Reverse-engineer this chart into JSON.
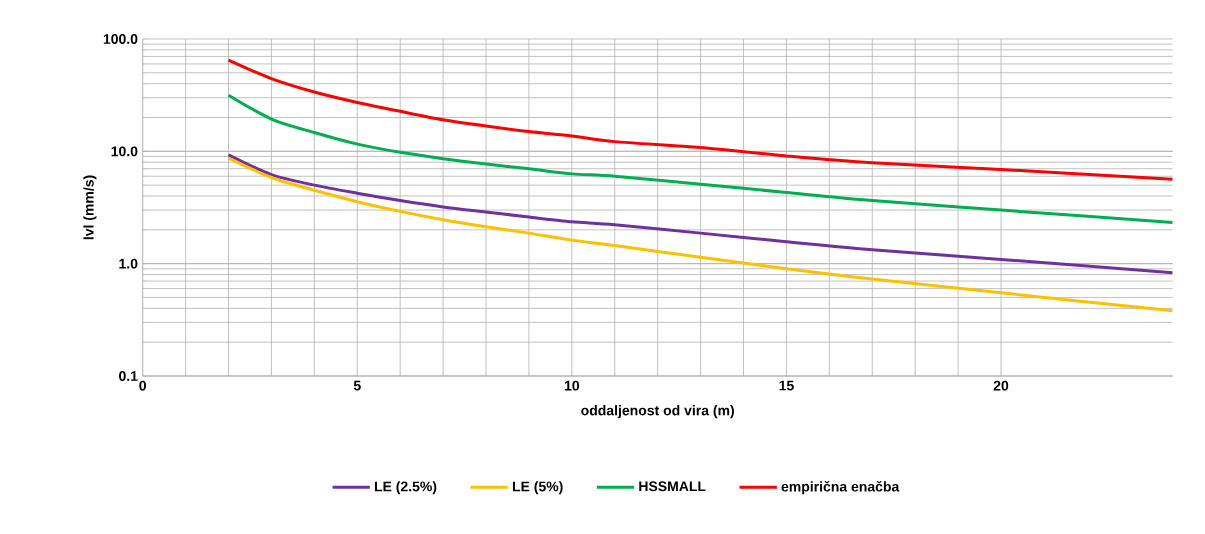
{
  "chart_data": {
    "type": "line",
    "xlabel": "oddaljenost od vira (m)",
    "ylabel": "lvl (mm/s)",
    "x": [
      2,
      3,
      4,
      5,
      6,
      7,
      8,
      9,
      10,
      11,
      13,
      15,
      17,
      20,
      24
    ],
    "series": [
      {
        "name": "LE (2.5%)",
        "color": "#7030a0",
        "values": [
          9.3,
          6.2,
          5.0,
          4.24,
          3.65,
          3.2,
          2.88,
          2.6,
          2.36,
          2.22,
          1.87,
          1.57,
          1.33,
          1.09,
          0.83
        ]
      },
      {
        "name": "LE (5%)",
        "color": "#ffc000",
        "values": [
          8.7,
          5.85,
          4.5,
          3.56,
          2.92,
          2.46,
          2.13,
          1.87,
          1.62,
          1.45,
          1.14,
          0.9,
          0.73,
          0.55,
          0.38
        ]
      },
      {
        "name": "HSSMALL",
        "color": "#00b050",
        "values": [
          31.6,
          19.4,
          14.7,
          11.6,
          9.8,
          8.6,
          7.7,
          7.0,
          6.3,
          6.0,
          5.1,
          4.3,
          3.65,
          3.0,
          2.33
        ]
      },
      {
        "name": "empirična enačba",
        "color": "#ff0000",
        "values": [
          64.9,
          44.4,
          33.7,
          27.2,
          22.7,
          19.1,
          16.8,
          15.0,
          13.7,
          12.2,
          10.8,
          9.1,
          7.9,
          6.9,
          5.65
        ]
      }
    ],
    "xlim": [
      0,
      24
    ],
    "xticks": [
      0,
      5,
      10,
      15,
      20
    ],
    "ylim": [
      0.1,
      100
    ],
    "yticks": [
      0.1,
      {
        "value": 1,
        "label": "1.0"
      },
      {
        "value": 10,
        "label": "10.0"
      },
      {
        "value": 100,
        "label": "100.0"
      }
    ],
    "log": true,
    "grid": true,
    "legend": "bottom",
    "marker": "none",
    "line_style": "solid"
  }
}
